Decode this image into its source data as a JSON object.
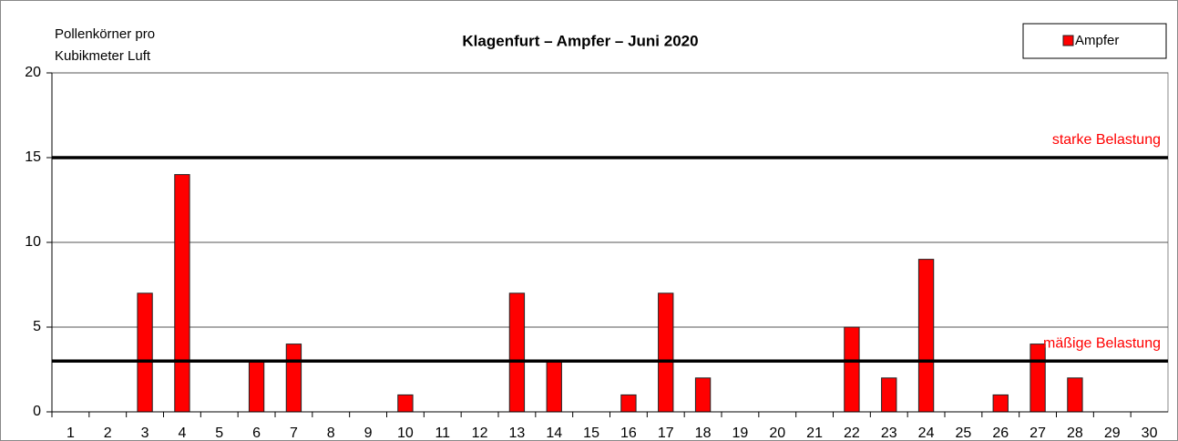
{
  "chart_data": {
    "type": "bar",
    "title": "Klagenfurt – Ampfer – Juni 2020",
    "ylabel": [
      "Pollenkörner pro",
      "Kubikmeter Luft"
    ],
    "categories": [
      1,
      2,
      3,
      4,
      5,
      6,
      7,
      8,
      9,
      10,
      11,
      12,
      13,
      14,
      15,
      16,
      17,
      18,
      19,
      20,
      21,
      22,
      23,
      24,
      25,
      26,
      27,
      28,
      29,
      30
    ],
    "series": [
      {
        "name": "Ampfer",
        "color": "#ff0000",
        "values": [
          0,
          0,
          7,
          14,
          0,
          3,
          4,
          0,
          0,
          1,
          0,
          0,
          7,
          3,
          0,
          1,
          7,
          2,
          0,
          0,
          0,
          5,
          2,
          9,
          0,
          1,
          4,
          2,
          0,
          0
        ]
      }
    ],
    "ylim": [
      0,
      20
    ],
    "yticks": [
      0,
      5,
      10,
      15,
      20
    ],
    "grid": true,
    "legend": "top-right",
    "thresholds": [
      {
        "value": 15,
        "label": "starke Belastung"
      },
      {
        "value": 3,
        "label": "mäßige Belastung"
      }
    ]
  }
}
